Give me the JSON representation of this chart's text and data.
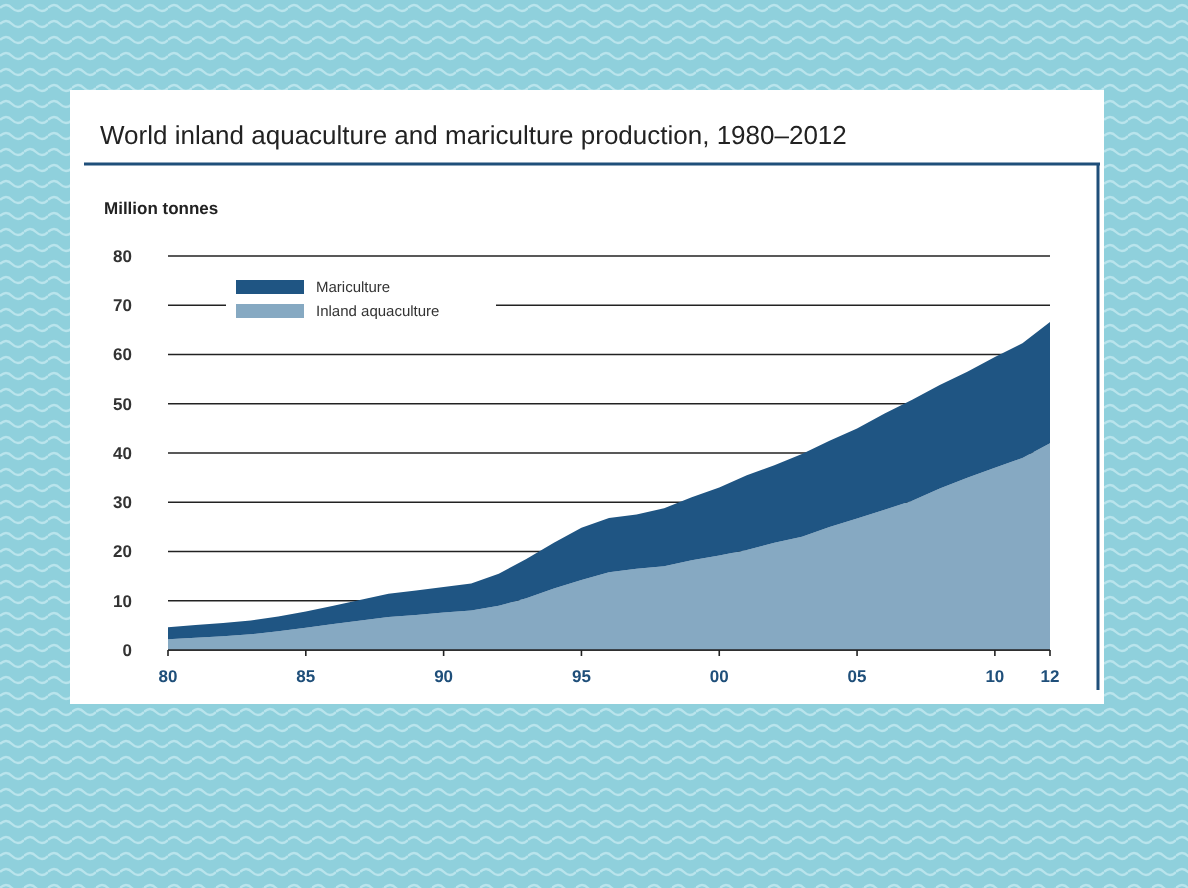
{
  "chart_data": {
    "type": "area",
    "stacked": true,
    "title": "World inland aquaculture and mariculture production, 1980–2012",
    "ylabel": "Million tonnes",
    "x": [
      1980,
      1981,
      1982,
      1983,
      1984,
      1985,
      1986,
      1987,
      1988,
      1989,
      1990,
      1991,
      1992,
      1993,
      1994,
      1995,
      1996,
      1997,
      1998,
      1999,
      2000,
      2001,
      2002,
      2003,
      2004,
      2005,
      2006,
      2007,
      2008,
      2009,
      2010,
      2011,
      2012
    ],
    "series": [
      {
        "name": "Inland aquaculture",
        "color": "#86a9c2",
        "values": [
          2.2,
          2.5,
          2.8,
          3.2,
          3.8,
          4.5,
          5.3,
          6.0,
          6.7,
          7.1,
          7.6,
          8.0,
          9.0,
          10.5,
          12.5,
          14.2,
          15.8,
          16.5,
          17.0,
          18.2,
          19.2,
          20.3,
          21.8,
          23.0,
          25.0,
          26.7,
          28.5,
          30.3,
          32.8,
          35.0,
          37.0,
          39.0,
          42.0
        ]
      },
      {
        "name": "Mariculture",
        "color": "#1f5583",
        "values": [
          2.4,
          2.6,
          2.7,
          2.8,
          3.0,
          3.3,
          3.7,
          4.2,
          4.7,
          5.0,
          5.2,
          5.5,
          6.5,
          8.0,
          9.3,
          10.6,
          11.0,
          11.0,
          11.8,
          12.8,
          13.8,
          15.2,
          15.7,
          16.8,
          17.5,
          18.3,
          19.5,
          20.5,
          21.0,
          21.5,
          22.5,
          23.3,
          24.6
        ]
      }
    ],
    "xlim": [
      1980,
      2012
    ],
    "xticks": [
      {
        "value": 1980,
        "label": "80"
      },
      {
        "value": 1985,
        "label": "85"
      },
      {
        "value": 1990,
        "label": "90"
      },
      {
        "value": 1995,
        "label": "95"
      },
      {
        "value": 2000,
        "label": "00"
      },
      {
        "value": 2005,
        "label": "05"
      },
      {
        "value": 2010,
        "label": "10"
      },
      {
        "value": 2012,
        "label": "12"
      }
    ],
    "ylim": [
      0,
      80
    ],
    "yticks": [
      0,
      10,
      20,
      30,
      40,
      50,
      60,
      70,
      80
    ],
    "grid": "y",
    "legend": "top left"
  }
}
